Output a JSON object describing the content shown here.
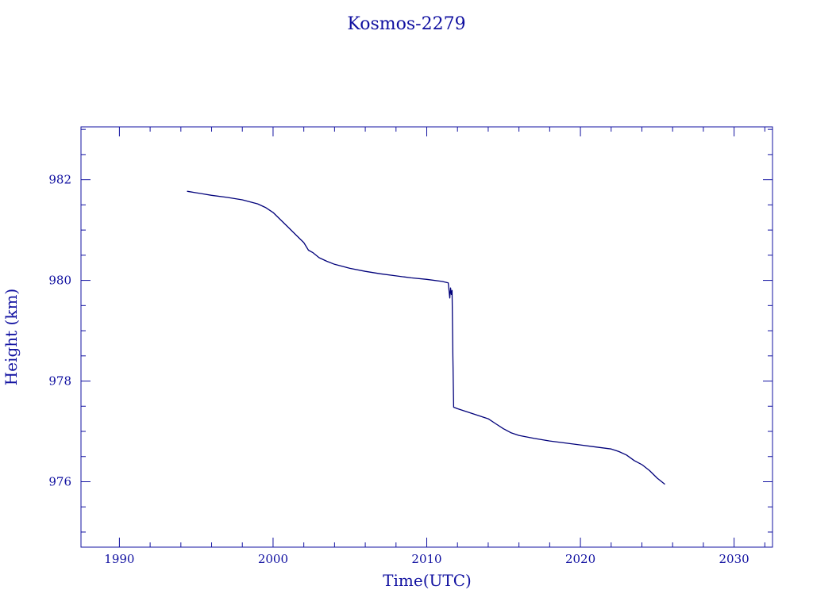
{
  "chart_data": {
    "type": "line",
    "title": "Kosmos-2279",
    "xlabel": "Time(UTC)",
    "ylabel": "Height (km)",
    "xlim": [
      1987.5,
      2032.5
    ],
    "ylim": [
      974.7,
      983.05
    ],
    "x_ticks": [
      1990,
      2000,
      2010,
      2020,
      2030
    ],
    "x_tick_labels": [
      "1990",
      "2000",
      "2010",
      "2020",
      "2030"
    ],
    "y_ticks": [
      976,
      978,
      980,
      982
    ],
    "y_tick_labels": [
      "976",
      "978",
      "980",
      "982"
    ],
    "grid": false,
    "color": "#00007a",
    "axis_color": "#1010a0",
    "series": [
      {
        "x": [
          1994.4,
          1995.0,
          1996.0,
          1997.0,
          1998.0,
          1999.0,
          1999.5,
          2000.0,
          2000.5,
          2001.0,
          2001.5,
          2002.0,
          2002.3,
          2002.6,
          2003.0,
          2003.5,
          2004.0,
          2005.0,
          2006.0,
          2007.0,
          2008.0,
          2009.0,
          2010.0,
          2011.0,
          2011.4,
          2011.5,
          2011.55,
          2011.6,
          2011.65,
          2011.7,
          2011.75,
          2012.0,
          2013.0,
          2014.0,
          2014.5,
          2015.0,
          2015.5,
          2016.0,
          2017.0,
          2018.0,
          2019.0,
          2020.0,
          2021.0,
          2022.0,
          2022.5,
          2023.0,
          2023.5,
          2024.0,
          2024.5,
          2025.0,
          2025.5
        ],
        "y": [
          981.77,
          981.74,
          981.69,
          981.65,
          981.6,
          981.52,
          981.45,
          981.35,
          981.2,
          981.05,
          980.9,
          980.75,
          980.6,
          980.55,
          980.45,
          980.38,
          980.32,
          980.24,
          980.18,
          980.13,
          980.09,
          980.05,
          980.02,
          979.98,
          979.95,
          979.65,
          979.85,
          979.72,
          979.8,
          978.5,
          977.48,
          977.45,
          977.35,
          977.25,
          977.15,
          977.05,
          976.97,
          976.92,
          976.86,
          976.81,
          976.77,
          976.73,
          976.69,
          976.65,
          976.6,
          976.53,
          976.42,
          976.34,
          976.22,
          976.07,
          975.95
        ]
      }
    ]
  }
}
